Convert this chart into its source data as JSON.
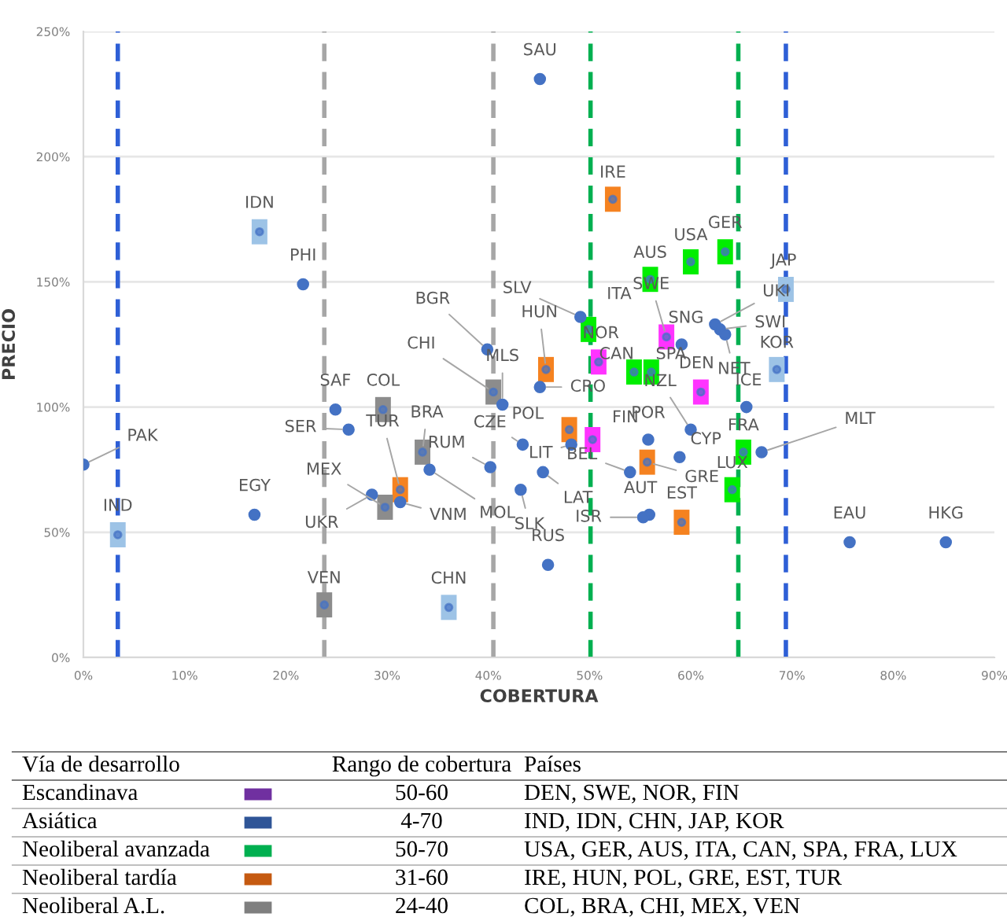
{
  "chart_data": [
    {
      "type": "scatter",
      "xlabel": "COBERTURA",
      "ylabel": "PRECIO",
      "xlim": [
        0,
        90
      ],
      "ylim": [
        0,
        250
      ],
      "xticks": [
        {
          "value": 0,
          "label": "0%"
        },
        {
          "value": 10,
          "label": "10%"
        },
        {
          "value": 20,
          "label": "20%"
        },
        {
          "value": 30,
          "label": "30%"
        },
        {
          "value": 40,
          "label": "40%"
        },
        {
          "value": 50,
          "label": "50%"
        },
        {
          "value": 60,
          "label": "60%"
        },
        {
          "value": 70,
          "label": "70%"
        },
        {
          "value": 80,
          "label": "80%"
        },
        {
          "value": 90,
          "label": "90%"
        }
      ],
      "yticks": [
        {
          "value": 0,
          "label": "0%"
        },
        {
          "value": 50,
          "label": "50%"
        },
        {
          "value": 100,
          "label": "100%"
        },
        {
          "value": 150,
          "label": "150%"
        },
        {
          "value": 200,
          "label": "200%"
        },
        {
          "value": 250,
          "label": "250%"
        }
      ],
      "grid": "y",
      "series": [
        {
          "color": "#4472c4",
          "marker": "circle",
          "x": [
            45.1,
            49.1,
            59.1,
            62.4,
            62.9,
            63.4,
            39.9,
            41.4,
            45.1,
            65.5,
            60.0,
            55.8,
            43.4,
            48.2,
            58.9,
            67.0,
            54.0,
            40.2,
            45.4,
            43.2,
            55.9,
            55.3,
            75.7,
            85.2,
            45.9,
            0.0,
            16.9,
            24.9,
            26.2,
            34.2,
            28.5,
            31.3,
            21.7
          ],
          "values": [
            231,
            136,
            125,
            133,
            131,
            129,
            123,
            101,
            108,
            100,
            91,
            87,
            85,
            85,
            80,
            82,
            74,
            76,
            74,
            67,
            57,
            56,
            46,
            46,
            37,
            77,
            57,
            99,
            91,
            75,
            65,
            62,
            149
          ]
        },
        {
          "color": "#ff33ff",
          "marker": "square",
          "x": [
            61.0,
            57.6,
            50.9,
            50.3
          ],
          "values": [
            106,
            128,
            118,
            87
          ]
        },
        {
          "color": "#9dc3e6",
          "marker": "square",
          "x": [
            3.4,
            17.4,
            36.1,
            69.4,
            68.5
          ],
          "values": [
            49,
            170,
            20,
            147,
            115
          ]
        },
        {
          "color": "#00ee00",
          "marker": "square",
          "x": [
            60.0,
            63.4,
            56.0,
            49.9,
            54.4,
            56.1,
            65.2,
            64.1
          ],
          "values": [
            158,
            162,
            151,
            131,
            114,
            114,
            82,
            67
          ]
        },
        {
          "color": "#f58220",
          "marker": "square",
          "x": [
            52.3,
            45.7,
            48.0,
            55.7,
            59.1,
            31.3
          ],
          "values": [
            183,
            115,
            91,
            78,
            54,
            67
          ]
        },
        {
          "color": "#8c8c8c",
          "marker": "square",
          "x": [
            29.6,
            33.5,
            40.5,
            29.8,
            23.8
          ],
          "values": [
            99,
            82,
            106,
            60,
            21
          ]
        }
      ],
      "ref_lines": [
        {
          "axis": "x",
          "value": 3.4,
          "color": "#2e5fd6",
          "line_style": "dashed"
        },
        {
          "axis": "x",
          "value": 69.4,
          "color": "#2e5fd6",
          "line_style": "dashed"
        },
        {
          "axis": "x",
          "value": 23.8,
          "color": "#a6a6a6",
          "line_style": "dashed"
        },
        {
          "axis": "x",
          "value": 40.5,
          "color": "#a6a6a6",
          "line_style": "dashed"
        },
        {
          "axis": "x",
          "value": 50.1,
          "color": "#00b050",
          "line_style": "dashed"
        },
        {
          "axis": "x",
          "value": 64.7,
          "color": "#00b050",
          "line_style": "dashed"
        }
      ],
      "annotations": [
        {
          "text": "SAU",
          "x": 45.1,
          "y": 231
        },
        {
          "text": "SLV",
          "x": 49.1,
          "y": 136
        },
        {
          "text": "SNG",
          "x": 59.1,
          "y": 125
        },
        {
          "text": "UKI",
          "x": 62.4,
          "y": 133
        },
        {
          "text": "SWI",
          "x": 62.9,
          "y": 131
        },
        {
          "text": "NET",
          "x": 63.4,
          "y": 129
        },
        {
          "text": "BGR",
          "x": 39.9,
          "y": 123
        },
        {
          "text": "MLS",
          "x": 41.4,
          "y": 101
        },
        {
          "text": "CRO",
          "x": 45.1,
          "y": 108
        },
        {
          "text": "ICE",
          "x": 65.5,
          "y": 100
        },
        {
          "text": "NZL",
          "x": 60.0,
          "y": 91
        },
        {
          "text": "POR",
          "x": 55.8,
          "y": 87
        },
        {
          "text": "CZE",
          "x": 43.4,
          "y": 85
        },
        {
          "text": "LIT",
          "x": 48.2,
          "y": 85
        },
        {
          "text": "CYP",
          "x": 58.9,
          "y": 80
        },
        {
          "text": "MLT",
          "x": 67.0,
          "y": 82
        },
        {
          "text": "BEL",
          "x": 54.0,
          "y": 74
        },
        {
          "text": "RUM",
          "x": 40.2,
          "y": 76
        },
        {
          "text": "LAT",
          "x": 45.4,
          "y": 74
        },
        {
          "text": "SLK",
          "x": 43.2,
          "y": 67
        },
        {
          "text": "AUT",
          "x": 55.9,
          "y": 57
        },
        {
          "text": "ISR",
          "x": 55.3,
          "y": 56
        },
        {
          "text": "EAU",
          "x": 75.7,
          "y": 46
        },
        {
          "text": "HKG",
          "x": 85.2,
          "y": 46
        },
        {
          "text": "RUS",
          "x": 45.9,
          "y": 37
        },
        {
          "text": "PAK",
          "x": 0.0,
          "y": 77
        },
        {
          "text": "EGY",
          "x": 16.9,
          "y": 57
        },
        {
          "text": "SAF",
          "x": 24.9,
          "y": 99
        },
        {
          "text": "SER",
          "x": 26.2,
          "y": 91
        },
        {
          "text": "MOL",
          "x": 34.2,
          "y": 75
        },
        {
          "text": "UKR",
          "x": 28.5,
          "y": 65
        },
        {
          "text": "VNM",
          "x": 31.3,
          "y": 62
        },
        {
          "text": "PHI",
          "x": 21.7,
          "y": 149
        },
        {
          "text": "DEN",
          "x": 61.0,
          "y": 106
        },
        {
          "text": "SWE",
          "x": 57.6,
          "y": 128
        },
        {
          "text": "NOR",
          "x": 50.9,
          "y": 118
        },
        {
          "text": "FIN",
          "x": 50.3,
          "y": 87
        },
        {
          "text": "IND",
          "x": 3.4,
          "y": 49
        },
        {
          "text": "IDN",
          "x": 17.4,
          "y": 170
        },
        {
          "text": "CHN",
          "x": 36.1,
          "y": 20
        },
        {
          "text": "JAP",
          "x": 69.4,
          "y": 147
        },
        {
          "text": "KOR",
          "x": 68.5,
          "y": 115
        },
        {
          "text": "USA",
          "x": 60.0,
          "y": 158
        },
        {
          "text": "GER",
          "x": 63.4,
          "y": 162
        },
        {
          "text": "AUS",
          "x": 56.0,
          "y": 151
        },
        {
          "text": "ITA",
          "x": 49.9,
          "y": 131
        },
        {
          "text": "CAN",
          "x": 54.4,
          "y": 114
        },
        {
          "text": "SPA",
          "x": 56.1,
          "y": 114
        },
        {
          "text": "FRA",
          "x": 65.2,
          "y": 82
        },
        {
          "text": "LUX",
          "x": 64.1,
          "y": 67
        },
        {
          "text": "IRE",
          "x": 52.3,
          "y": 183
        },
        {
          "text": "HUN",
          "x": 45.7,
          "y": 115
        },
        {
          "text": "POL",
          "x": 48.0,
          "y": 91
        },
        {
          "text": "GRE",
          "x": 55.7,
          "y": 78
        },
        {
          "text": "EST",
          "x": 59.1,
          "y": 54
        },
        {
          "text": "TUR",
          "x": 31.3,
          "y": 67
        },
        {
          "text": "COL",
          "x": 29.6,
          "y": 99
        },
        {
          "text": "BRA",
          "x": 33.5,
          "y": 82
        },
        {
          "text": "CHI",
          "x": 40.5,
          "y": 106
        },
        {
          "text": "MEX",
          "x": 29.8,
          "y": 60
        },
        {
          "text": "VEN",
          "x": 23.8,
          "y": 21
        }
      ]
    },
    {
      "type": "other",
      "colors": [
        "#7030a0",
        "#2f5597",
        "#00b050",
        "#c55a11",
        "#7f7f7f"
      ],
      "annotations": [
        "Vía de desarrollo",
        "Rango de cobertura",
        "Países",
        "Escandinava",
        "50-60",
        "DEN, SWE, NOR, FIN",
        "Asiática",
        "4-70",
        "IND, IDN, CHN, JAP, KOR",
        "Neoliberal avanzada",
        "50-70",
        "USA, GER, AUS, ITA, CAN, SPA, FRA, LUX",
        "Neoliberal tardía",
        "31-60",
        "IRE, HUN, POL, GRE, EST, TUR",
        "Neoliberal A.L.",
        "24-40",
        "COL, BRA, CHI, MEX, VEN"
      ]
    }
  ]
}
